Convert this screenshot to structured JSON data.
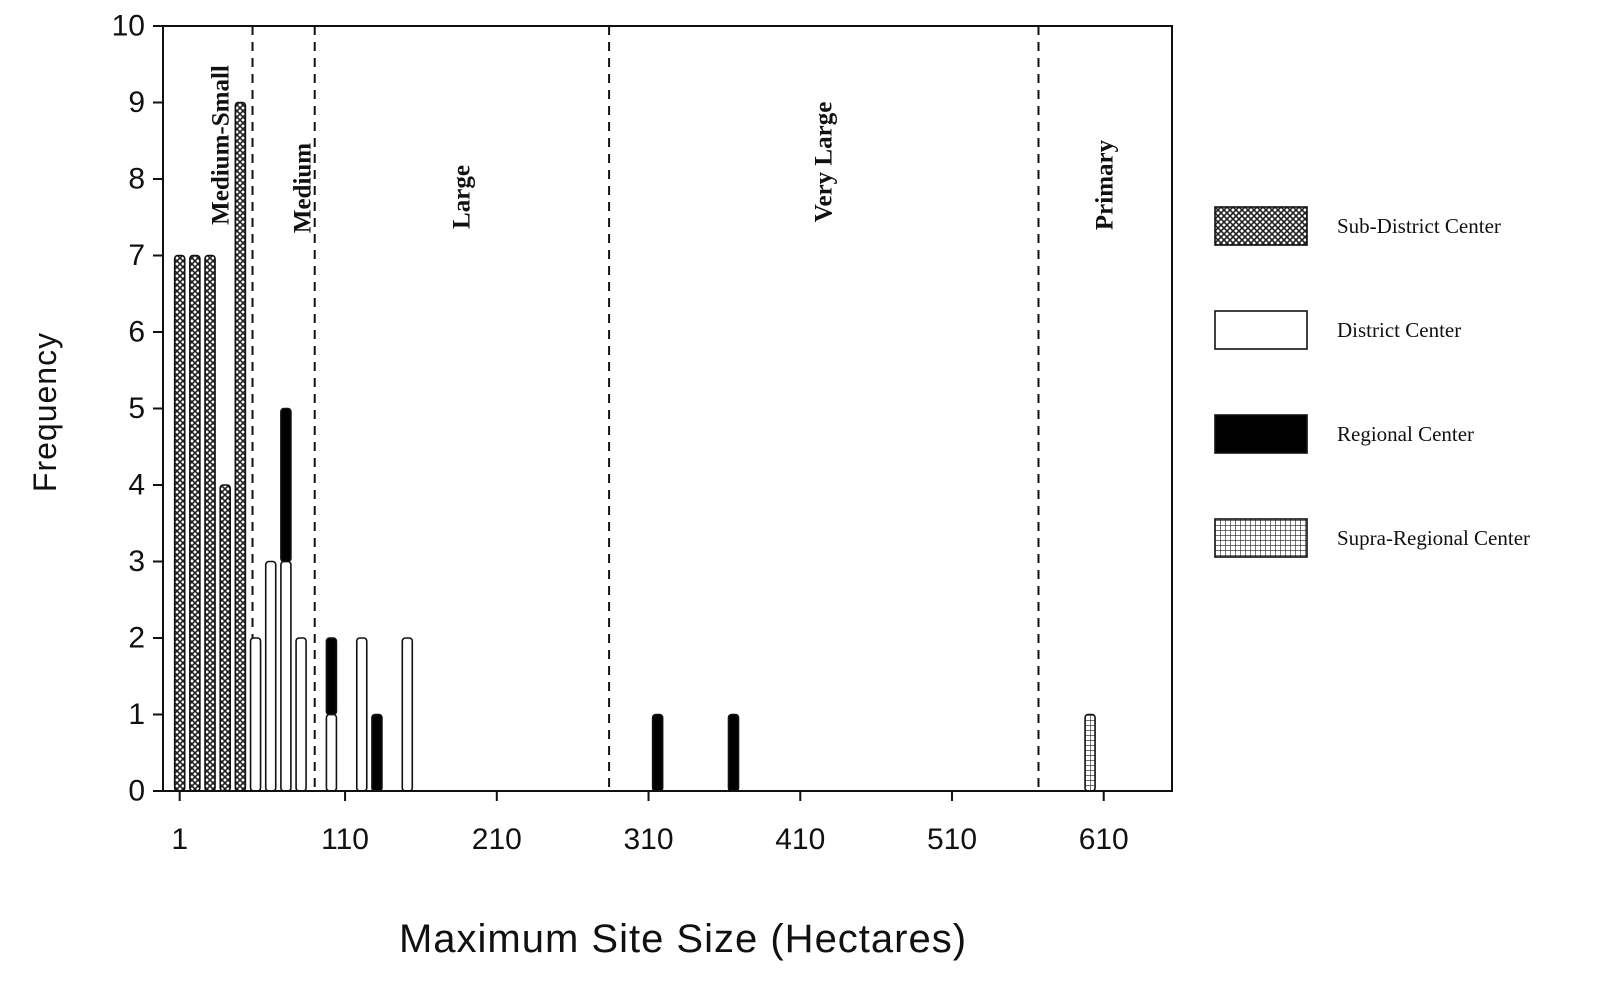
{
  "chart_data": {
    "type": "bar",
    "title": "",
    "xlabel": "Maximum Site Size (Hectares)",
    "ylabel": "Frequency",
    "ylim": [
      0,
      10
    ],
    "yticks": [
      "0",
      "1",
      "2",
      "3",
      "4",
      "5",
      "6",
      "7",
      "8",
      "9",
      "10"
    ],
    "xlim": [
      -10,
      655
    ],
    "xticks": [
      {
        "label": "1",
        "value": 1
      },
      {
        "label": "110",
        "value": 110
      },
      {
        "label": "210",
        "value": 210
      },
      {
        "label": "310",
        "value": 310
      },
      {
        "label": "410",
        "value": 410
      },
      {
        "label": "510",
        "value": 510
      },
      {
        "label": "610",
        "value": 610
      }
    ],
    "grid": false,
    "legend_position": "right",
    "series": [
      {
        "name": "Sub-District Center",
        "pattern": "crosshatch",
        "color": "#222222",
        "points": [
          {
            "x": 1,
            "y": 7
          },
          {
            "x": 11,
            "y": 7
          },
          {
            "x": 21,
            "y": 7
          },
          {
            "x": 31,
            "y": 4
          },
          {
            "x": 41,
            "y": 9
          }
        ]
      },
      {
        "name": "District Center",
        "pattern": "open",
        "color": "#ffffff",
        "points": [
          {
            "x": 51,
            "y": 2
          },
          {
            "x": 61,
            "y": 3
          },
          {
            "x": 71,
            "y": 3
          },
          {
            "x": 81,
            "y": 2
          },
          {
            "x": 101,
            "y": 1
          },
          {
            "x": 121,
            "y": 2
          },
          {
            "x": 151,
            "y": 2
          }
        ]
      },
      {
        "name": "Regional Center",
        "pattern": "solid",
        "color": "#000000",
        "points": [
          {
            "x": 71,
            "y": 2
          },
          {
            "x": 101,
            "y": 1
          },
          {
            "x": 131,
            "y": 1
          },
          {
            "x": 316,
            "y": 1
          },
          {
            "x": 366,
            "y": 1
          }
        ]
      },
      {
        "name": "Supra-Regional Center",
        "pattern": "grid",
        "color": "#444444",
        "points": [
          {
            "x": 601,
            "y": 1
          }
        ]
      }
    ],
    "stacks": [
      [
        71,
        "District Center",
        "Regional Center"
      ],
      [
        101,
        "District Center",
        "Regional Center"
      ]
    ],
    "zones": [
      {
        "label": "Medium-Small",
        "start": -10,
        "end": 49
      },
      {
        "label": "Medium",
        "start": 49,
        "end": 90
      },
      {
        "label": "Large",
        "start": 90,
        "end": 284
      },
      {
        "label": "Very Large",
        "start": 284,
        "end": 567
      },
      {
        "label": "Primary",
        "start": 567,
        "end": 655
      }
    ]
  }
}
